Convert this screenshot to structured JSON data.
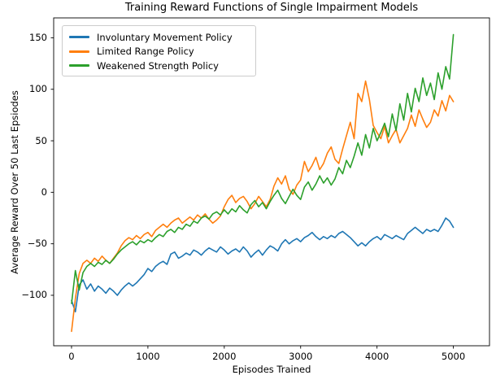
{
  "figure": {
    "title": "Training Reward Functions of Single Impairment Models",
    "xlabel": "Episodes Trained",
    "ylabel": "Average Reward Over 50 Last Epsiodes"
  },
  "chart_data": {
    "type": "line",
    "title": "Training Reward Functions of Single Impairment Models",
    "xlabel": "Episodes Trained",
    "ylabel": "Average Reward Over 50 Last Epsiodes",
    "grid": false,
    "legend_position": "upper left",
    "xlim": [
      -234,
      5473
    ],
    "ylim": [
      -149,
      169.3
    ],
    "x_ticks": [
      0,
      1000,
      2000,
      3000,
      4000,
      5000
    ],
    "y_ticks": [
      150,
      100,
      50,
      0,
      -50,
      -100
    ],
    "series": [
      {
        "name": "Involuntary Movement Policy",
        "color": "#1f77b4",
        "x_start": 0,
        "x_step": 50,
        "values": [
          -105,
          -116,
          -90,
          -85,
          -94,
          -89,
          -96,
          -91,
          -94,
          -98,
          -93,
          -96,
          -100,
          -95,
          -91,
          -88,
          -91,
          -88,
          -84,
          -80,
          -74,
          -77,
          -72,
          -69,
          -67,
          -70,
          -60,
          -58,
          -64,
          -62,
          -59,
          -61,
          -56,
          -58,
          -61,
          -57,
          -54,
          -56,
          -58,
          -53,
          -56,
          -60,
          -57,
          -55,
          -58,
          -53,
          -57,
          -63,
          -59,
          -56,
          -61,
          -56,
          -52,
          -54,
          -57,
          -50,
          -46,
          -50,
          -47,
          -45,
          -48,
          -44,
          -42,
          -39,
          -43,
          -46,
          -43,
          -45,
          -42,
          -44,
          -40,
          -38,
          -41,
          -44,
          -48,
          -52,
          -49,
          -52,
          -48,
          -45,
          -43,
          -46,
          -41,
          -43,
          -45,
          -42,
          -44,
          -46,
          -40,
          -37,
          -34,
          -37,
          -40,
          -36,
          -38,
          -36,
          -38,
          -32,
          -25,
          -28,
          -34
        ]
      },
      {
        "name": "Limited Range Policy",
        "color": "#ff7f0e",
        "x_start": 0,
        "x_step": 50,
        "values": [
          -135,
          -103,
          -79,
          -69,
          -66,
          -69,
          -64,
          -67,
          -62,
          -66,
          -69,
          -64,
          -59,
          -52,
          -47,
          -44,
          -46,
          -42,
          -45,
          -41,
          -39,
          -43,
          -37,
          -34,
          -31,
          -34,
          -30,
          -27,
          -25,
          -30,
          -27,
          -24,
          -27,
          -22,
          -25,
          -21,
          -26,
          -30,
          -27,
          -23,
          -14,
          -7,
          -3,
          -10,
          -6,
          -4,
          -9,
          -16,
          -11,
          -4,
          -9,
          -14,
          -7,
          6,
          14,
          8,
          16,
          3,
          -2,
          7,
          12,
          30,
          20,
          26,
          34,
          22,
          28,
          38,
          44,
          32,
          28,
          42,
          55,
          68,
          52,
          96,
          88,
          108,
          90,
          65,
          58,
          52,
          64,
          48,
          55,
          61,
          48,
          55,
          62,
          75,
          64,
          80,
          71,
          63,
          68,
          80,
          74,
          89,
          79,
          94,
          88
        ]
      },
      {
        "name": "Weakened Strength Policy",
        "color": "#2ca02c",
        "x_start": 0,
        "x_step": 50,
        "values": [
          -108,
          -76,
          -95,
          -78,
          -72,
          -69,
          -72,
          -68,
          -70,
          -66,
          -69,
          -65,
          -60,
          -56,
          -53,
          -50,
          -48,
          -51,
          -47,
          -49,
          -46,
          -48,
          -44,
          -41,
          -43,
          -38,
          -36,
          -39,
          -34,
          -36,
          -31,
          -33,
          -28,
          -30,
          -25,
          -23,
          -26,
          -21,
          -19,
          -22,
          -17,
          -21,
          -16,
          -19,
          -13,
          -17,
          -20,
          -12,
          -8,
          -14,
          -10,
          -16,
          -9,
          -3,
          2,
          -6,
          -11,
          -4,
          3,
          -3,
          -7,
          5,
          10,
          2,
          8,
          16,
          9,
          14,
          7,
          13,
          24,
          18,
          31,
          24,
          35,
          48,
          36,
          56,
          43,
          62,
          50,
          58,
          67,
          54,
          76,
          60,
          86,
          70,
          96,
          78,
          101,
          88,
          111,
          94,
          106,
          90,
          116,
          100,
          122,
          110,
          153
        ]
      }
    ]
  }
}
